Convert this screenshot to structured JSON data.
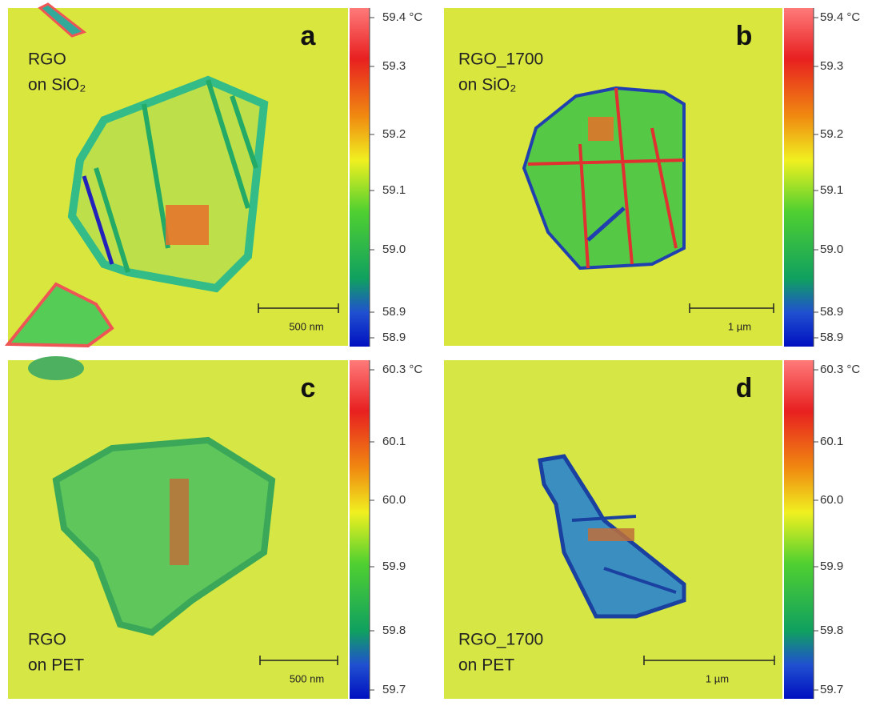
{
  "panels": [
    {
      "letter": "a",
      "label": [
        "RGO",
        "on SiO₂"
      ],
      "scalebar": "500 nm",
      "colorbar": [
        "59.4 °C",
        "59.3",
        "59.2",
        "59.1",
        "59.0",
        "58.9",
        "58.9"
      ]
    },
    {
      "letter": "b",
      "label": [
        "RGO_1700",
        "on SiO₂"
      ],
      "scalebar": "1 µm",
      "colorbar": [
        "59.4 °C",
        "59.3",
        "59.2",
        "59.1",
        "59.0",
        "58.9",
        "58.9"
      ]
    },
    {
      "letter": "c",
      "label": [
        "RGO",
        "on PET"
      ],
      "scalebar": "500 nm",
      "colorbar": [
        "60.3 °C",
        "60.1",
        "60.0",
        "59.9",
        "59.8",
        "59.7"
      ]
    },
    {
      "letter": "d",
      "label": [
        "RGO_1700",
        "on PET"
      ],
      "scalebar": "1 µm",
      "colorbar": [
        "60.3 °C",
        "60.1",
        "60.0",
        "59.9",
        "59.8",
        "59.7"
      ]
    }
  ]
}
